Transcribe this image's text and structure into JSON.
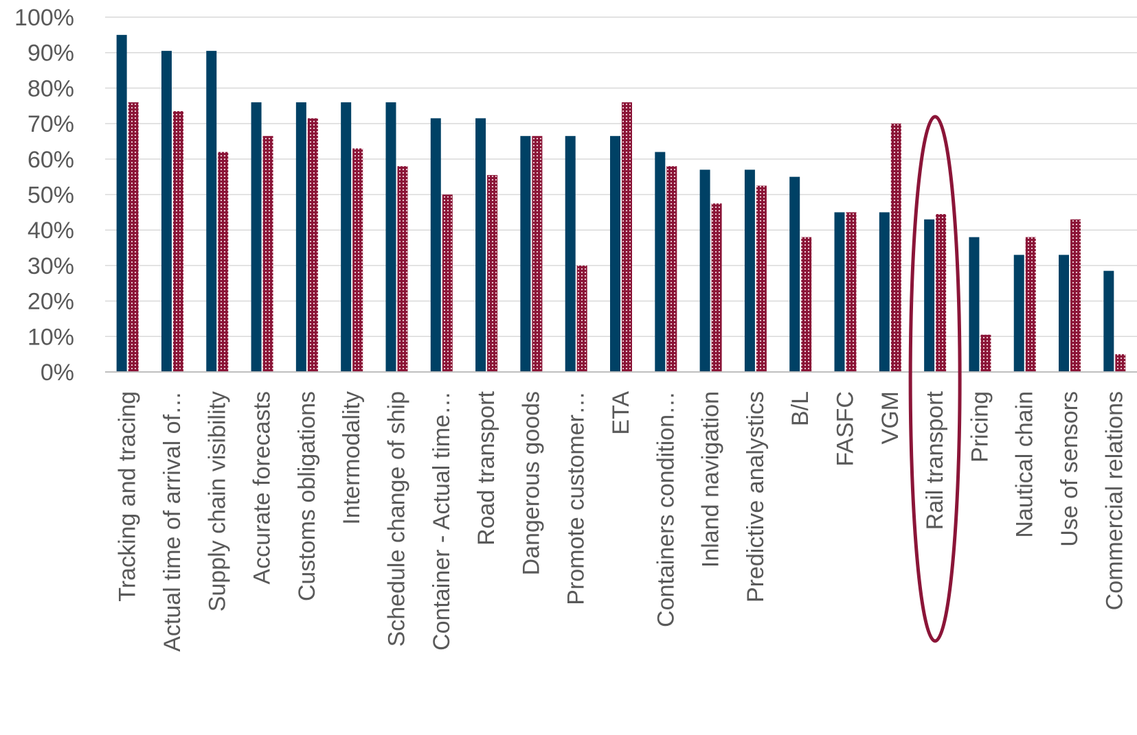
{
  "chart_data": {
    "type": "bar",
    "categories": [
      "Tracking and tracing",
      "Actual time of arrival of…",
      "Supply chain visibility",
      "Accurate forecasts",
      "Customs obligations",
      "Intermodality",
      "Schedule change of ship",
      "Container - Actual time…",
      "Road transport",
      "Dangerous goods",
      "Promote customer…",
      "ETA",
      "Containers condition…",
      "Inland navigation",
      "Predictive analystics",
      "B/L",
      "FASFC",
      "VGM",
      "Rail transport",
      "Pricing",
      "Nautical chain",
      "Use of sensors",
      "Commercial relations"
    ],
    "series": [
      {
        "values": [
          95,
          90.5,
          90.5,
          76,
          76,
          76,
          76,
          71.5,
          71.5,
          66.5,
          66.5,
          66.5,
          62,
          57,
          57,
          55,
          45,
          45,
          43,
          38,
          33,
          33,
          28.5
        ],
        "color": "#004165"
      },
      {
        "values": [
          76,
          73.5,
          62,
          66.5,
          71.5,
          63,
          58,
          50,
          55.5,
          66.5,
          30,
          76,
          58,
          47.5,
          52.5,
          38,
          45,
          70,
          44.5,
          10.5,
          38,
          43,
          5
        ],
        "color": "#8b1538",
        "pattern": "dotted"
      }
    ],
    "yticks": [
      "0%",
      "10%",
      "20%",
      "30%",
      "40%",
      "50%",
      "60%",
      "70%",
      "80%",
      "90%",
      "100%"
    ],
    "ylim": [
      0,
      100
    ],
    "grid": true,
    "legend": "none",
    "highlight": {
      "category": "Rail transport",
      "shape": "ellipse",
      "color": "#8b1538"
    }
  }
}
